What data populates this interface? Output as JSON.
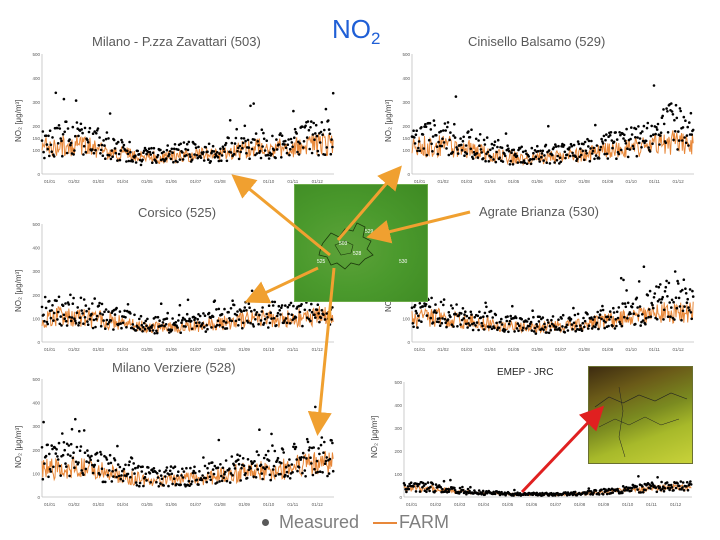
{
  "main_title": {
    "text": "NO",
    "sub": "2"
  },
  "legend": {
    "measured": "Measured",
    "farm": "FARM"
  },
  "map": {
    "labels": [
      "529",
      "503",
      "525",
      "528",
      "530"
    ]
  },
  "emep": {
    "label": "EMEP - JRC"
  },
  "colors": {
    "farm_line": "#e8883a",
    "measured_dot": "#000000",
    "title": "#1f5fd6",
    "arrow_orange": "#f0a030",
    "arrow_red": "#e02020"
  },
  "chart_data": [
    {
      "type": "line",
      "title": "Milano - P.zza Zavattari (503)",
      "ylabel": "NO₂ [μg/m³]",
      "yticks": [
        "0",
        "100",
        "150",
        "200",
        "300",
        "400",
        "500"
      ],
      "ylim": [
        0,
        500
      ],
      "categories": [
        "01/01",
        "01/02",
        "01/03",
        "01/04",
        "01/05",
        "01/06",
        "01/07",
        "01/08",
        "01/09",
        "01/10",
        "01/11",
        "01/12"
      ],
      "series": [
        {
          "name": "Measured",
          "values": [
            130,
            150,
            135,
            110,
            75,
            80,
            90,
            95,
            110,
            130,
            120,
            150
          ]
        },
        {
          "name": "FARM",
          "values": [
            110,
            120,
            110,
            90,
            70,
            70,
            75,
            80,
            95,
            110,
            105,
            120
          ]
        }
      ]
    },
    {
      "type": "line",
      "title": "Cinisello Balsamo (529)",
      "ylabel": "NO₂ [μg/m³]",
      "yticks": [
        "0",
        "100",
        "150",
        "200",
        "300",
        "400",
        "500"
      ],
      "ylim": [
        0,
        500
      ],
      "categories": [
        "01/01",
        "01/02",
        "01/03",
        "01/04",
        "01/05",
        "01/06",
        "01/07",
        "01/08",
        "01/09",
        "01/10",
        "01/11",
        "01/12"
      ],
      "series": [
        {
          "name": "Measured",
          "values": [
            135,
            155,
            140,
            110,
            80,
            75,
            85,
            90,
            110,
            130,
            150,
            200
          ]
        },
        {
          "name": "FARM",
          "values": [
            110,
            120,
            110,
            90,
            70,
            65,
            70,
            75,
            90,
            105,
            115,
            130
          ]
        }
      ]
    },
    {
      "type": "line",
      "title": "Corsico (525)",
      "ylabel": "NO₂ [μg/m³]",
      "yticks": [
        "0",
        "100",
        "200",
        "300",
        "400",
        "500"
      ],
      "ylim": [
        0,
        500
      ],
      "categories": [
        "01/01",
        "01/02",
        "01/03",
        "01/04",
        "01/05",
        "01/06",
        "01/07",
        "01/08",
        "01/09",
        "01/10",
        "01/11",
        "01/12"
      ],
      "series": [
        {
          "name": "Measured",
          "values": [
            120,
            140,
            120,
            100,
            75,
            70,
            80,
            90,
            110,
            120,
            110,
            140
          ]
        },
        {
          "name": "FARM",
          "values": [
            100,
            110,
            100,
            85,
            65,
            60,
            65,
            75,
            90,
            100,
            95,
            110
          ]
        }
      ]
    },
    {
      "type": "line",
      "title": "Agrate Brianza (530)",
      "ylabel": "NO₂ [μg/m³]",
      "yticks": [
        "0",
        "100",
        "200",
        "300",
        "400",
        "500"
      ],
      "ylim": [
        0,
        500
      ],
      "categories": [
        "01/01",
        "01/02",
        "01/03",
        "01/04",
        "01/05",
        "01/06",
        "01/07",
        "01/08",
        "01/09",
        "01/10",
        "01/11",
        "01/12"
      ],
      "series": [
        {
          "name": "Measured",
          "values": [
            110,
            130,
            110,
            90,
            75,
            70,
            75,
            80,
            100,
            115,
            140,
            180
          ]
        },
        {
          "name": "FARM",
          "values": [
            95,
            105,
            95,
            80,
            65,
            60,
            65,
            70,
            85,
            95,
            110,
            125
          ]
        }
      ]
    },
    {
      "type": "line",
      "title": "Milano Verziere (528)",
      "ylabel": "NO₂ [μg/m³]",
      "yticks": [
        "0",
        "100",
        "200",
        "300",
        "400",
        "500"
      ],
      "ylim": [
        0,
        500
      ],
      "categories": [
        "01/01",
        "01/02",
        "01/03",
        "01/04",
        "01/05",
        "01/06",
        "01/07",
        "01/08",
        "01/09",
        "01/10",
        "01/11",
        "01/12"
      ],
      "series": [
        {
          "name": "Measured",
          "values": [
            150,
            160,
            140,
            115,
            90,
            85,
            90,
            100,
            120,
            135,
            140,
            170
          ]
        },
        {
          "name": "FARM",
          "values": [
            120,
            125,
            115,
            95,
            75,
            70,
            75,
            85,
            100,
            115,
            120,
            140
          ]
        }
      ]
    },
    {
      "type": "line",
      "title": "",
      "ylabel": "NO₂ [μg/m³]",
      "yticks": [
        "0",
        "100",
        "200",
        "300",
        "400",
        "500"
      ],
      "ylim": [
        0,
        500
      ],
      "categories": [
        "01/01",
        "01/02",
        "01/03",
        "01/04",
        "01/05",
        "01/06",
        "01/07",
        "01/08",
        "01/09",
        "01/10",
        "01/11",
        "01/12"
      ],
      "series": [
        {
          "name": "Measured",
          "values": [
            40,
            45,
            30,
            20,
            15,
            12,
            12,
            14,
            20,
            30,
            40,
            45
          ]
        },
        {
          "name": "FARM",
          "values": [
            35,
            40,
            28,
            18,
            14,
            10,
            10,
            12,
            18,
            28,
            35,
            40
          ]
        }
      ]
    }
  ]
}
